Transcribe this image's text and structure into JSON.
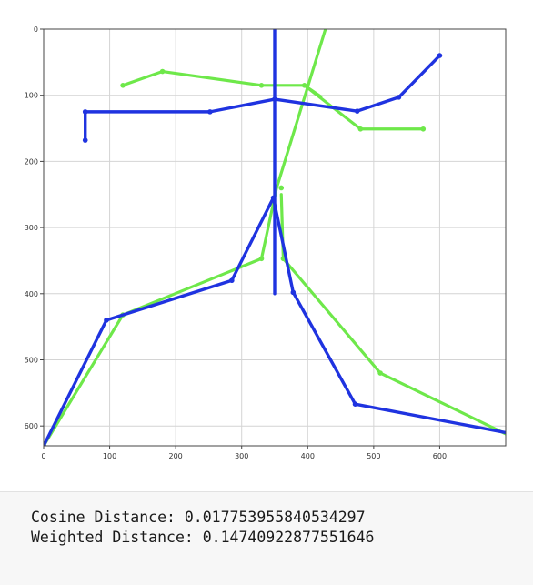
{
  "chart_data": {
    "type": "line",
    "xlim": [
      0,
      700
    ],
    "ylim": [
      630,
      0
    ],
    "y_inverted": true,
    "grid": true,
    "x_ticks": [
      0,
      100,
      200,
      300,
      400,
      500,
      600
    ],
    "y_ticks": [
      0,
      100,
      200,
      300,
      400,
      500,
      600
    ],
    "series": [
      {
        "color": "#6ee84a",
        "segments": [
          [
            [
              120,
              85
            ],
            [
              180,
              64
            ],
            [
              330,
              85
            ],
            [
              395,
              85
            ],
            [
              480,
              151
            ],
            [
              575,
              151
            ]
          ],
          [
            [
              0,
              630
            ],
            [
              120,
              432
            ],
            [
              330,
              347
            ],
            [
              353,
              240
            ],
            [
              430,
              -10
            ]
          ],
          [
            [
              360,
              250
            ],
            [
              363,
              347
            ],
            [
              510,
              520
            ],
            [
              700,
              612
            ]
          ],
          [
            [
              395,
              85
            ],
            [
              420,
              102
            ]
          ]
        ],
        "points": [
          [
            120,
            85
          ],
          [
            180,
            64
          ],
          [
            330,
            85
          ],
          [
            395,
            85
          ],
          [
            480,
            151
          ],
          [
            575,
            151
          ],
          [
            120,
            432
          ],
          [
            330,
            347
          ],
          [
            360,
            240
          ],
          [
            363,
            347
          ],
          [
            510,
            520
          ],
          [
            0,
            630
          ]
        ]
      },
      {
        "color": "#1f33e0",
        "segments": [
          [
            [
              63,
              168
            ],
            [
              63,
              125
            ],
            [
              252,
              125
            ],
            [
              350,
              106
            ],
            [
              475,
              124
            ],
            [
              538,
              103
            ],
            [
              600,
              40
            ]
          ],
          [
            [
              350,
              -10
            ],
            [
              350,
              400
            ]
          ],
          [
            [
              0,
              630
            ],
            [
              95,
              440
            ],
            [
              285,
              380
            ],
            [
              348,
              255
            ],
            [
              378,
              398
            ],
            [
              472,
              567
            ],
            [
              700,
              610
            ]
          ]
        ],
        "points": [
          [
            63,
            168
          ],
          [
            63,
            125
          ],
          [
            252,
            125
          ],
          [
            350,
            106
          ],
          [
            475,
            124
          ],
          [
            538,
            103
          ],
          [
            600,
            40
          ],
          [
            95,
            440
          ],
          [
            285,
            380
          ],
          [
            348,
            255
          ],
          [
            378,
            398
          ],
          [
            472,
            567
          ],
          [
            0,
            630
          ]
        ]
      }
    ]
  },
  "output": {
    "cosine_line": "Cosine Distance: 0.017753955840534297",
    "weighted_line": "Weighted Distance: 0.14740922877551646"
  }
}
